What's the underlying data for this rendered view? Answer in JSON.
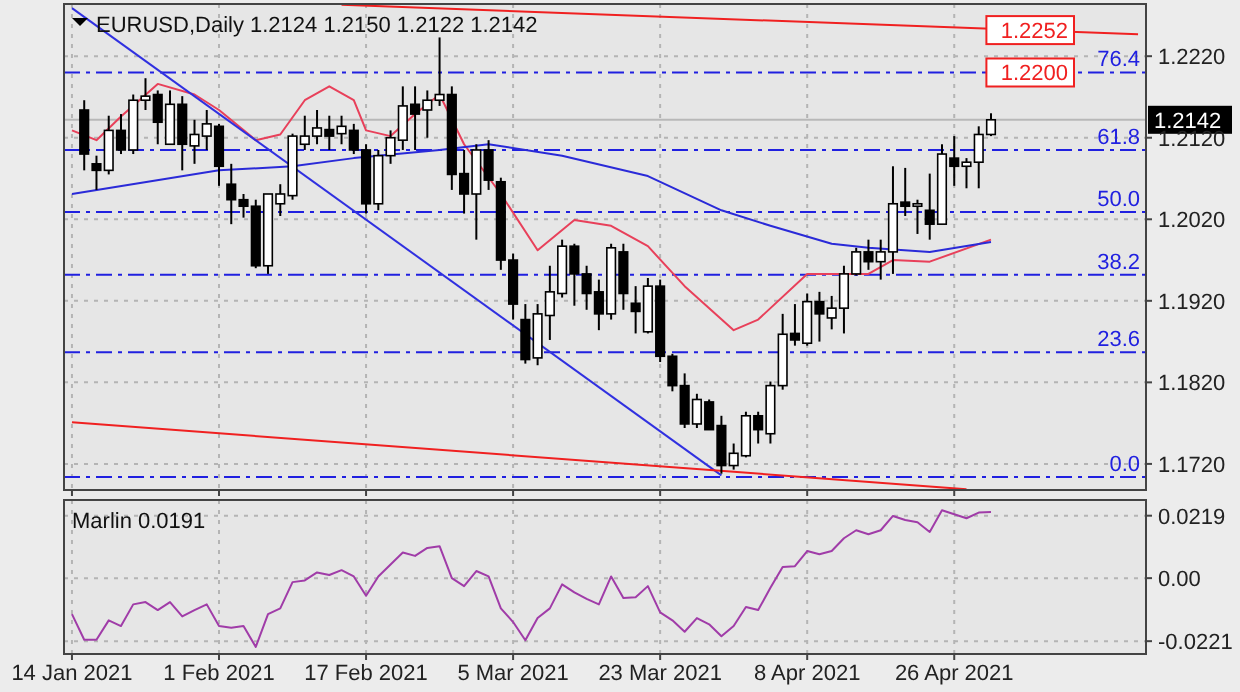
{
  "chart_data": [
    {
      "type": "candlestick",
      "title": "EURUSD,Daily 1.2124 1.2150 1.2122 1.2142",
      "categories": [
        null,
        null,
        null,
        null,
        null,
        null,
        null,
        null,
        null,
        null,
        null,
        null,
        null,
        null,
        null,
        null,
        null,
        null,
        null,
        null,
        null,
        null,
        null,
        null,
        null,
        null,
        null,
        null,
        null,
        null,
        null,
        null,
        null,
        null,
        null,
        null,
        null,
        null,
        null,
        null,
        null,
        null,
        null,
        null,
        null,
        null,
        null,
        null,
        null,
        null,
        null,
        null,
        null,
        null,
        null,
        null,
        null,
        null,
        null,
        null,
        null,
        null,
        null,
        null,
        null,
        null,
        null,
        null,
        null,
        null,
        null,
        null,
        null,
        null,
        null,
        null,
        null,
        null,
        null,
        null,
        null,
        null,
        null,
        null,
        null,
        null,
        null,
        null
      ],
      "ohlc": [
        null,
        [
          1.2154,
          1.2166,
          1.208,
          1.21
        ],
        [
          1.2088,
          1.2098,
          1.2056,
          1.208
        ],
        [
          1.208,
          1.2147,
          1.2075,
          1.2129
        ],
        [
          1.2129,
          1.2149,
          1.21,
          1.2105
        ],
        [
          1.2105,
          1.2173,
          1.21,
          1.2166
        ],
        [
          1.2166,
          1.2193,
          1.2154,
          1.2171
        ],
        [
          1.2173,
          1.2178,
          1.2112,
          1.2139
        ],
        [
          1.2112,
          1.2178,
          1.2112,
          1.2161
        ],
        [
          1.2161,
          1.2171,
          1.208,
          1.2112
        ],
        [
          1.211,
          1.2142,
          1.2088,
          1.2124
        ],
        [
          1.2122,
          1.2154,
          1.2105,
          1.2137
        ],
        [
          1.2134,
          1.2137,
          1.2061,
          1.2085
        ],
        [
          1.2063,
          1.2088,
          1.2014,
          1.2044
        ],
        [
          1.2044,
          1.2051,
          1.2022,
          1.2036
        ],
        [
          1.2036,
          1.2044,
          1.196,
          1.1963
        ],
        [
          1.1963,
          1.2051,
          1.1953,
          1.2051
        ],
        [
          1.2039,
          1.2063,
          1.2024,
          1.2051
        ],
        [
          1.2049,
          1.2125,
          1.2044,
          1.2122
        ],
        [
          1.2112,
          1.2147,
          1.2105,
          1.2122
        ],
        [
          1.2122,
          1.2154,
          1.2112,
          1.2132
        ],
        [
          1.213,
          1.2147,
          1.2105,
          1.2122
        ],
        [
          1.2125,
          1.2147,
          1.2112,
          1.2134
        ],
        [
          1.2129,
          1.2137,
          1.21,
          1.2105
        ],
        [
          1.2105,
          1.2112,
          1.2027,
          1.2039
        ],
        [
          1.2039,
          1.2105,
          1.2031,
          1.2098
        ],
        [
          1.2098,
          1.2129,
          1.2088,
          1.212
        ],
        [
          1.2117,
          1.2183,
          1.2105,
          1.2159
        ],
        [
          1.2161,
          1.2183,
          1.2105,
          1.2149
        ],
        [
          1.2154,
          1.2178,
          1.212,
          1.2166
        ],
        [
          1.2166,
          1.2243,
          1.2159,
          1.2173
        ],
        [
          1.2173,
          1.2183,
          1.2056,
          1.2075
        ],
        [
          1.2076,
          1.2105,
          1.2027,
          1.2051
        ],
        [
          1.2051,
          1.2112,
          1.1995,
          1.2105
        ],
        [
          1.2105,
          1.2117,
          1.2056,
          1.2068
        ],
        [
          1.2066,
          1.2071,
          1.1958,
          1.197
        ],
        [
          1.197,
          1.1978,
          1.1897,
          1.1916
        ],
        [
          1.1897,
          1.1916,
          1.1843,
          1.1848
        ],
        [
          1.185,
          1.1916,
          1.1841,
          1.1904
        ],
        [
          1.1902,
          1.1963,
          1.1872,
          1.1931
        ],
        [
          1.1929,
          1.1995,
          1.1924,
          1.1987
        ],
        [
          1.1987,
          1.199,
          1.1914,
          1.1953
        ],
        [
          1.1953,
          1.1963,
          1.1909,
          1.1929
        ],
        [
          1.1931,
          1.1946,
          1.1884,
          1.1904
        ],
        [
          1.1904,
          1.199,
          1.1897,
          1.1985
        ],
        [
          1.198,
          1.199,
          1.1909,
          1.1929
        ],
        [
          1.1917,
          1.1938,
          1.188,
          1.1907
        ],
        [
          1.1882,
          1.1948,
          1.188,
          1.1938
        ],
        [
          1.1938,
          1.1946,
          1.1845,
          1.1852
        ],
        [
          1.1852,
          1.1855,
          1.1809,
          1.1816
        ],
        [
          1.1816,
          1.1831,
          1.1764,
          1.1769
        ],
        [
          1.1769,
          1.1806,
          1.1764,
          1.1799
        ],
        [
          1.1796,
          1.1799,
          1.1762,
          1.1762
        ],
        [
          1.1767,
          1.1779,
          1.1708,
          1.1718
        ],
        [
          1.1718,
          1.1745,
          1.1713,
          1.1733
        ],
        [
          1.173,
          1.1784,
          1.1728,
          1.1779
        ],
        [
          1.1779,
          1.1784,
          1.1745,
          1.1762
        ],
        [
          1.1757,
          1.1821,
          1.1745,
          1.1816
        ],
        [
          1.1816,
          1.1904,
          1.1811,
          1.1879
        ],
        [
          1.188,
          1.1916,
          1.1865,
          1.1872
        ],
        [
          1.1868,
          1.1929,
          1.1865,
          1.1919
        ],
        [
          1.1919,
          1.1931,
          1.187,
          1.1904
        ],
        [
          1.1899,
          1.1926,
          1.1885,
          1.1911
        ],
        [
          1.1911,
          1.1963,
          1.188,
          1.1953
        ],
        [
          1.1953,
          1.1985,
          1.1951,
          1.198
        ],
        [
          1.198,
          1.1995,
          1.1958,
          1.1968
        ],
        [
          1.1968,
          1.1995,
          1.1946,
          1.198
        ],
        [
          1.198,
          1.2085,
          1.1953,
          1.2039
        ],
        [
          1.2041,
          1.2083,
          1.2024,
          1.2036
        ],
        [
          1.2036,
          1.2044,
          1.2002,
          1.2039
        ],
        [
          1.2031,
          1.2076,
          1.1995,
          1.2014
        ],
        [
          1.2014,
          1.2112,
          1.2014,
          1.21
        ],
        [
          1.2095,
          1.2122,
          1.2061,
          1.2085
        ],
        [
          1.2085,
          1.2095,
          1.2058,
          1.209
        ],
        [
          1.209,
          1.2134,
          1.2058,
          1.2124
        ],
        [
          1.2124,
          1.215,
          1.2122,
          1.2142
        ],
        null,
        null,
        null,
        null,
        null,
        null,
        null,
        null,
        null,
        null,
        null,
        null
      ],
      "series": [
        {
          "type": "line",
          "color": "#e8405a",
          "values": [
            1.2129,
            null,
            1.2117,
            null,
            1.2146,
            null,
            null,
            1.2186,
            null,
            null,
            1.2173,
            null,
            1.2154,
            null,
            null,
            1.2117,
            null,
            1.2124,
            null,
            1.2166,
            null,
            1.2183,
            null,
            1.2166,
            1.2129,
            null,
            1.2122,
            null,
            1.2149,
            null,
            1.2173,
            null,
            1.2112,
            null,
            null,
            1.2051,
            null,
            null,
            1.1982,
            null,
            null,
            1.2019,
            null,
            null,
            1.2012,
            null,
            null,
            1.1987,
            null,
            null,
            1.1938,
            null,
            null,
            null,
            1.1884,
            null,
            1.1897,
            null,
            null,
            null,
            1.1953,
            null,
            1.1953,
            null,
            null,
            1.1953,
            null,
            1.197,
            null,
            null,
            1.1968,
            null,
            null,
            null,
            null,
            1.1995,
            null,
            null,
            null,
            null,
            null,
            null,
            null,
            null,
            null,
            null,
            null,
            null
          ]
        },
        {
          "type": "line",
          "color": "#2a2ad8",
          "values": [
            1.2051,
            null,
            null,
            null,
            null,
            null,
            null,
            null,
            null,
            null,
            null,
            null,
            1.208,
            null,
            null,
            null,
            null,
            null,
            1.2085,
            null,
            null,
            null,
            null,
            1.2095,
            null,
            null,
            null,
            null,
            null,
            null,
            1.2105,
            null,
            null,
            null,
            1.2112,
            null,
            null,
            null,
            null,
            null,
            1.2098,
            null,
            null,
            null,
            null,
            null,
            null,
            1.2073,
            null,
            null,
            null,
            null,
            null,
            1.2031,
            null,
            null,
            null,
            1.2012,
            null,
            null,
            null,
            null,
            1.199,
            null,
            null,
            1.1985,
            null,
            null,
            null,
            null,
            1.198,
            null,
            null,
            null,
            null,
            1.1992,
            null,
            null,
            null,
            null,
            null,
            null,
            null,
            null,
            null,
            null,
            null,
            null
          ]
        },
        {
          "type": "line",
          "color": "#3030e0",
          "values": [
            1.2279,
            null,
            null,
            null,
            null,
            null,
            null,
            null,
            null,
            null,
            null,
            null,
            null,
            null,
            null,
            null,
            null,
            null,
            null,
            null,
            null,
            null,
            null,
            null,
            null,
            null,
            null,
            null,
            null,
            null,
            null,
            null,
            null,
            null,
            null,
            null,
            null,
            null,
            null,
            null,
            null,
            null,
            null,
            null,
            null,
            null,
            null,
            null,
            null,
            null,
            null,
            null,
            null,
            1.1706,
            null,
            null,
            null,
            null,
            null,
            null,
            null,
            null,
            null,
            null,
            null,
            null,
            null,
            null,
            null,
            null,
            null,
            null,
            null,
            null,
            null,
            null,
            null,
            null,
            null,
            null,
            null,
            null,
            null,
            null,
            null,
            null,
            null,
            null
          ]
        },
        {
          "type": "line",
          "color": "#f02020",
          "values": [
            null,
            null,
            null,
            null,
            null,
            null,
            null,
            null,
            null,
            null,
            null,
            null,
            null,
            null,
            null,
            null,
            null,
            null,
            null,
            null,
            null,
            null,
            1.2283,
            null,
            null,
            null,
            null,
            null,
            null,
            null,
            null,
            null,
            null,
            null,
            null,
            null,
            null,
            null,
            null,
            null,
            null,
            null,
            null,
            null,
            null,
            null,
            null,
            null,
            null,
            null,
            null,
            null,
            null,
            null,
            null,
            null,
            null,
            null,
            null,
            null,
            null,
            null,
            null,
            null,
            null,
            null,
            null,
            null,
            null,
            null,
            null,
            null,
            null,
            null,
            null,
            null,
            null,
            null,
            null,
            null,
            null,
            null,
            null,
            null,
            null,
            null,
            null,
            1.2247
          ]
        },
        {
          "type": "line",
          "color": "#f02020",
          "values": [
            1.1771,
            null,
            null,
            null,
            null,
            null,
            null,
            null,
            null,
            null,
            null,
            null,
            null,
            null,
            null,
            null,
            null,
            null,
            null,
            null,
            null,
            null,
            null,
            null,
            null,
            null,
            null,
            null,
            null,
            null,
            null,
            null,
            null,
            null,
            null,
            null,
            null,
            null,
            null,
            null,
            null,
            null,
            null,
            null,
            null,
            null,
            null,
            null,
            null,
            null,
            null,
            null,
            null,
            null,
            null,
            null,
            null,
            null,
            null,
            null,
            null,
            null,
            null,
            null,
            null,
            null,
            null,
            null,
            null,
            null,
            null,
            null,
            null,
            1.1689,
            null,
            null,
            null,
            null,
            null,
            null,
            null,
            null,
            null,
            null,
            null,
            null,
            null,
            null
          ]
        }
      ],
      "ylim": [
        1.1688,
        1.2284
      ],
      "yticks": [
        {
          "value": 1.222,
          "label": "1.2220"
        },
        {
          "value": 1.212,
          "label": "1.2120"
        },
        {
          "value": 1.202,
          "label": "1.2020"
        },
        {
          "value": 1.192,
          "label": "1.1920"
        },
        {
          "value": 1.182,
          "label": "1.1820"
        },
        {
          "value": 1.172,
          "label": "1.1720"
        }
      ],
      "ref_lines": [
        {
          "axis": "y",
          "value": 1.22,
          "label": "1.2200",
          "color": "#2020e0",
          "line_style": "dashed"
        },
        {
          "axis": "y",
          "value": 1.2105,
          "color": "#2020e0",
          "line_style": "dashed"
        },
        {
          "axis": "y",
          "value": 1.2029,
          "color": "#2020e0",
          "line_style": "dashed"
        },
        {
          "axis": "y",
          "value": 1.1952,
          "color": "#2020e0",
          "line_style": "dashed"
        },
        {
          "axis": "y",
          "value": 1.1857,
          "color": "#2020e0",
          "line_style": "dashed"
        },
        {
          "axis": "y",
          "value": 1.1704,
          "color": "#2020e0",
          "line_style": "dashed"
        },
        {
          "axis": "y",
          "value": 1.2142,
          "label": "1.2142",
          "color": "#b8b8b8",
          "line_style": "solid"
        }
      ],
      "annotations": [
        {
          "text": "1.2252",
          "y": 1.2252
        },
        {
          "text": "76.4",
          "y": 1.22
        },
        {
          "text": "61.8",
          "y": 1.2105
        },
        {
          "text": "50.0",
          "y": 1.2029
        },
        {
          "text": "38.2",
          "y": 1.1952
        },
        {
          "text": "23.6",
          "y": 1.1857
        },
        {
          "text": "0.0",
          "y": 1.1704
        }
      ],
      "grid": true,
      "tick_labels": "y"
    },
    {
      "type": "line",
      "title": "Marlin 0.0191",
      "categories": [
        "14 Jan 2021",
        null,
        null,
        null,
        null,
        null,
        null,
        null,
        null,
        null,
        null,
        null,
        "1 Feb 2021",
        null,
        null,
        null,
        null,
        null,
        null,
        null,
        null,
        null,
        null,
        null,
        "17 Feb 2021",
        null,
        null,
        null,
        null,
        null,
        null,
        null,
        null,
        null,
        null,
        null,
        "5 Mar 2021",
        null,
        null,
        null,
        null,
        null,
        null,
        null,
        null,
        null,
        null,
        null,
        "23 Mar 2021",
        null,
        null,
        null,
        null,
        null,
        null,
        null,
        null,
        null,
        null,
        null,
        "8 Apr 2021",
        null,
        null,
        null,
        null,
        null,
        null,
        null,
        null,
        null,
        null,
        null,
        "26 Apr 2021",
        null,
        null,
        null,
        null,
        null,
        null,
        null,
        null,
        null,
        null,
        null,
        null,
        null,
        null,
        null
      ],
      "series": [
        {
          "color": "#a03ca8",
          "values": [
            -0.0126,
            -0.0216,
            -0.0216,
            -0.0148,
            -0.0168,
            -0.0092,
            -0.0084,
            -0.0112,
            -0.0084,
            -0.0134,
            -0.0112,
            -0.0092,
            -0.0168,
            -0.0174,
            -0.0168,
            -0.0241,
            -0.0126,
            -0.0106,
            -0.0014,
            -0.0008,
            0.002,
            0.0011,
            0.0028,
            0.0006,
            -0.0062,
            0.0006,
            0.0048,
            0.009,
            0.0078,
            0.0106,
            0.0112,
            0.0,
            -0.0028,
            0.0025,
            0.0006,
            -0.0106,
            -0.0154,
            -0.0218,
            -0.014,
            -0.0106,
            -0.0022,
            -0.005,
            -0.0073,
            -0.0092,
            0.0006,
            -0.007,
            -0.0067,
            -0.0028,
            -0.012,
            -0.0148,
            -0.0188,
            -0.014,
            -0.0162,
            -0.0204,
            -0.0168,
            -0.0101,
            -0.0112,
            -0.0034,
            0.0039,
            0.0042,
            0.0095,
            0.0084,
            0.0095,
            0.014,
            0.0168,
            0.0154,
            0.0168,
            0.0218,
            0.0204,
            0.0196,
            0.0162,
            0.0238,
            0.0224,
            0.021,
            0.023,
            0.0232,
            null,
            null,
            null,
            null,
            null,
            null,
            null,
            null,
            null,
            null,
            null,
            null
          ]
        }
      ],
      "ylim": [
        -0.0266,
        0.0274
      ],
      "yticks": [
        0.0219,
        {
          "value": 0,
          "label": "0.00"
        },
        -0.0221
      ],
      "grid": true
    }
  ]
}
